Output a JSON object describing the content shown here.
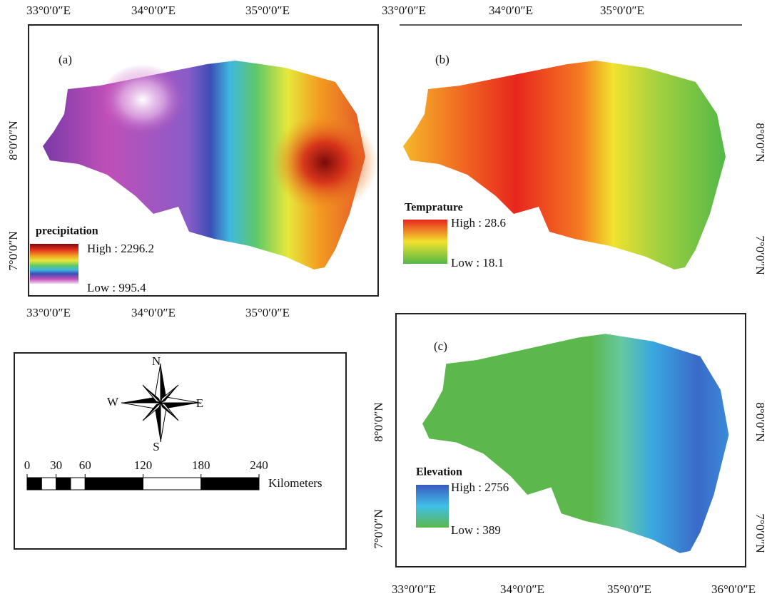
{
  "panels": [
    {
      "label": "(a)",
      "legend": {
        "title": "precipitation",
        "high": "High : 2296.2",
        "low": "Low : 995.4"
      },
      "top_axis": [
        "33°0′0″E",
        "34°0′0″E",
        "35°0′0″E"
      ],
      "bottom_axis": [
        "33°0′0″E",
        "34°0′0″E",
        "35°0′0″E"
      ],
      "left_axis": [
        "8°0′0″N",
        "7°0′0″N"
      ]
    },
    {
      "label": "(b)",
      "legend": {
        "title": "Temprature",
        "high": "High : 28.6",
        "low": "Low : 18.1"
      },
      "top_axis": [
        "33°0′0″E",
        "34°0′0″E",
        "35°0′0″E"
      ],
      "right_axis": [
        "8°0′0″N",
        "7°0′0″N"
      ]
    },
    {
      "label": "(c)",
      "legend": {
        "title": "Elevation",
        "high": "High : 2756",
        "low": "Low : 389"
      },
      "bottom_axis": [
        "33°0′0″E",
        "34°0′0″E",
        "35°0′0″E",
        "36°0′0″E"
      ],
      "left_axis": [
        "8°0′0″N",
        "7°0′0″N"
      ],
      "right_axis": [
        "8°0′0″N",
        "7°0′0″N"
      ]
    }
  ],
  "scale": {
    "compass": {
      "north": "N",
      "west": "W",
      "east": "E",
      "south": "S"
    },
    "ticks": [
      0,
      30,
      60,
      120,
      180,
      240
    ],
    "unit": "Kilometers"
  }
}
